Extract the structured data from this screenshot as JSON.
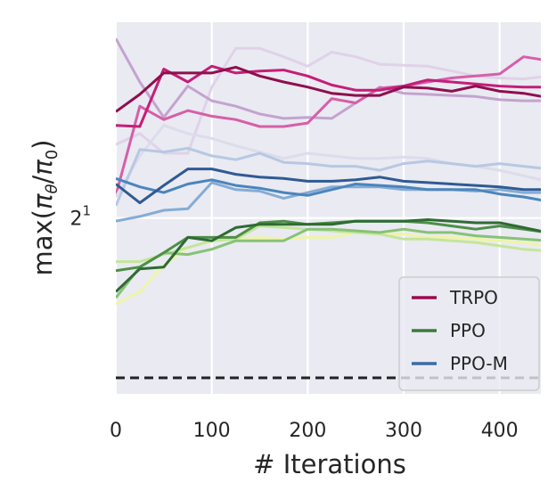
{
  "chart_data": {
    "type": "line",
    "title": "",
    "xlabel": "# Iterations",
    "ylabel": "max(πθ/π0)",
    "yscale": "log2",
    "xlim": [
      0,
      443
    ],
    "ylim": [
      1.14,
      3.74
    ],
    "grid": true,
    "legend_position": "bottom-right",
    "x_ticks": [
      "0",
      "100",
      "200",
      "300",
      "400"
    ],
    "x_tick_values": [
      0,
      100,
      200,
      300,
      400
    ],
    "y_ticks": [
      {
        "base": "2",
        "exp": "1",
        "value": 2
      }
    ],
    "reference_line": {
      "value": 1.2,
      "style": "dashed",
      "color": "#222222"
    },
    "x": [
      0,
      25,
      50,
      75,
      100,
      125,
      150,
      175,
      200,
      225,
      250,
      275,
      300,
      325,
      350,
      375,
      400,
      425,
      450
    ],
    "legend": [
      {
        "name": "TRPO",
        "color": "#9b0a50"
      },
      {
        "name": "PPO",
        "color": "#3d7a3c"
      },
      {
        "name": "PPO-M",
        "color": "#3b6aa6"
      }
    ],
    "series": [
      {
        "group": "TRPO",
        "color": "#e0d2e8",
        "values": [
          2.53,
          2.62,
          2.46,
          2.46,
          3.04,
          3.44,
          3.44,
          3.35,
          3.25,
          3.4,
          3.35,
          3.27,
          3.26,
          3.25,
          3.2,
          3.15,
          3.13,
          3.12,
          3.15
        ]
      },
      {
        "group": "TRPO",
        "color": "#c4a3cf",
        "values": [
          3.55,
          3.09,
          2.76,
          3.05,
          2.91,
          2.86,
          2.79,
          2.75,
          2.76,
          2.75,
          2.89,
          3.04,
          2.98,
          2.97,
          2.96,
          2.95,
          2.92,
          2.91,
          2.91
        ]
      },
      {
        "group": "TRPO",
        "color": "#d65fa8",
        "values": [
          2.15,
          2.86,
          2.74,
          2.82,
          2.77,
          2.74,
          2.68,
          2.68,
          2.71,
          2.93,
          2.89,
          3.03,
          3.05,
          3.09,
          3.13,
          3.15,
          3.17,
          3.35,
          3.31
        ]
      },
      {
        "group": "TRPO",
        "color": "#c41e79",
        "values": [
          2.69,
          2.68,
          3.22,
          3.09,
          3.25,
          3.18,
          3.2,
          3.21,
          3.15,
          3.06,
          3.01,
          3.01,
          3.05,
          3.11,
          3.09,
          3.07,
          3.05,
          3.04,
          3.04
        ]
      },
      {
        "group": "TRPO",
        "color": "#8e0f4e",
        "values": [
          2.81,
          2.97,
          3.18,
          3.18,
          3.18,
          3.24,
          3.15,
          3.09,
          3.04,
          2.98,
          2.96,
          2.96,
          3.04,
          3.03,
          3.0,
          3.05,
          3.0,
          2.98,
          2.94
        ]
      },
      {
        "group": "PPO-M",
        "color": "#dcdcec",
        "values": [
          2.14,
          2.44,
          2.69,
          2.62,
          2.58,
          2.52,
          2.47,
          2.42,
          2.46,
          2.44,
          2.42,
          2.42,
          2.43,
          2.42,
          2.38,
          2.36,
          2.33,
          2.29,
          2.25
        ]
      },
      {
        "group": "PPO-M",
        "color": "#b7c8e2",
        "values": [
          2.08,
          2.49,
          2.47,
          2.5,
          2.44,
          2.41,
          2.46,
          2.39,
          2.38,
          2.36,
          2.36,
          2.33,
          2.38,
          2.4,
          2.38,
          2.36,
          2.38,
          2.36,
          2.34
        ]
      },
      {
        "group": "PPO-M",
        "color": "#85acd4",
        "values": [
          1.98,
          2.01,
          2.05,
          2.06,
          2.24,
          2.19,
          2.18,
          2.13,
          2.17,
          2.21,
          2.21,
          2.21,
          2.19,
          2.19,
          2.19,
          2.18,
          2.19,
          2.17,
          2.17
        ]
      },
      {
        "group": "PPO-M",
        "color": "#4a85bd",
        "values": [
          2.27,
          2.21,
          2.17,
          2.23,
          2.26,
          2.22,
          2.2,
          2.17,
          2.15,
          2.19,
          2.23,
          2.22,
          2.21,
          2.19,
          2.19,
          2.19,
          2.16,
          2.14,
          2.11
        ]
      },
      {
        "group": "PPO-M",
        "color": "#2f5a94",
        "values": [
          2.23,
          2.1,
          2.22,
          2.34,
          2.34,
          2.3,
          2.28,
          2.27,
          2.25,
          2.25,
          2.26,
          2.28,
          2.25,
          2.24,
          2.23,
          2.22,
          2.21,
          2.19,
          2.19
        ]
      },
      {
        "group": "PPO",
        "color": "#eef5a8",
        "values": [
          1.52,
          1.58,
          1.72,
          1.82,
          1.86,
          1.87,
          1.88,
          1.87,
          1.88,
          1.88,
          1.91,
          1.9,
          1.9,
          1.88,
          1.88,
          1.87,
          1.86,
          1.85,
          1.83
        ]
      },
      {
        "group": "PPO",
        "color": "#c4e59b",
        "values": [
          1.74,
          1.74,
          1.78,
          1.82,
          1.86,
          1.87,
          1.95,
          1.94,
          1.93,
          1.92,
          1.91,
          1.9,
          1.87,
          1.87,
          1.86,
          1.85,
          1.83,
          1.81,
          1.8
        ]
      },
      {
        "group": "PPO",
        "color": "#87c276",
        "values": [
          1.55,
          1.71,
          1.79,
          1.78,
          1.81,
          1.86,
          1.86,
          1.86,
          1.93,
          1.93,
          1.92,
          1.91,
          1.93,
          1.91,
          1.91,
          1.89,
          1.88,
          1.87,
          1.86
        ]
      },
      {
        "group": "PPO",
        "color": "#4d8f47",
        "values": [
          1.69,
          1.71,
          1.79,
          1.88,
          1.88,
          1.88,
          1.97,
          1.98,
          1.96,
          1.97,
          1.98,
          1.98,
          1.98,
          1.97,
          1.95,
          1.93,
          1.95,
          1.93,
          1.91
        ]
      },
      {
        "group": "PPO",
        "color": "#2f6b33",
        "values": [
          1.58,
          1.7,
          1.71,
          1.88,
          1.86,
          1.94,
          1.96,
          1.96,
          1.96,
          1.96,
          1.98,
          1.98,
          1.98,
          1.99,
          1.98,
          1.97,
          1.97,
          1.94,
          1.91
        ]
      }
    ],
    "colors": {
      "background": "#eaeaf2",
      "grid": "#ffffff"
    }
  }
}
